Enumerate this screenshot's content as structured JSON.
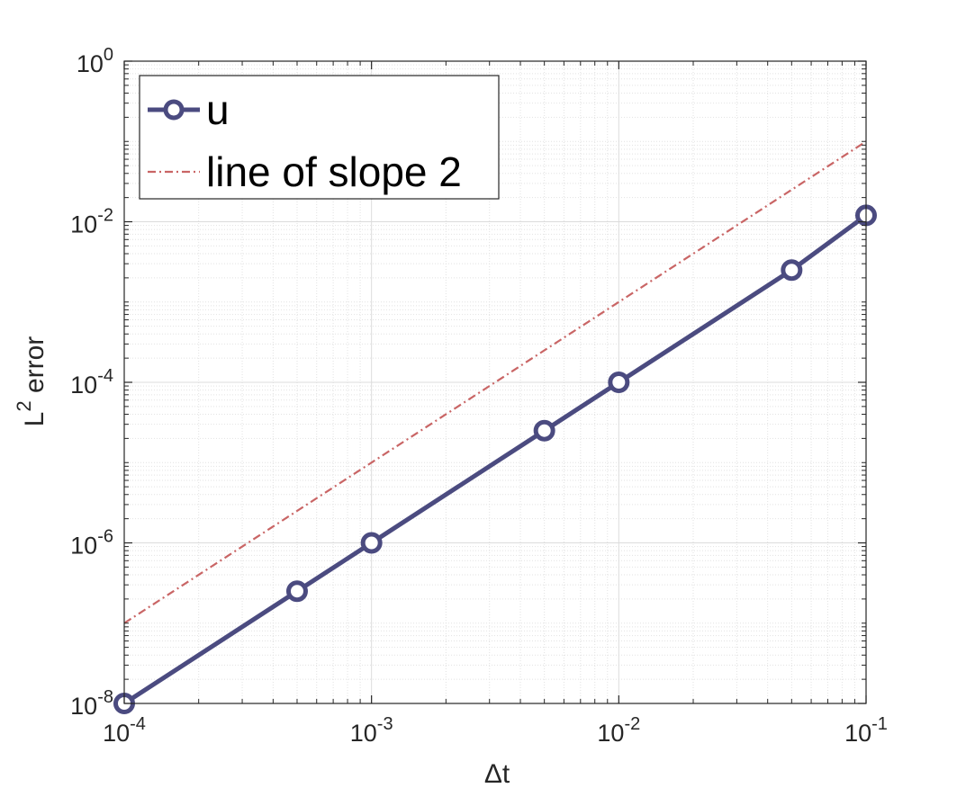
{
  "chart_data": {
    "type": "line",
    "xscale": "log",
    "yscale": "log",
    "xlim": [
      0.0001,
      0.1
    ],
    "ylim": [
      1e-08,
      1
    ],
    "grid": true,
    "minor_grid": true,
    "xlabel": "Δt",
    "ylabel": {
      "base": "L",
      "superscript": "2",
      "rest": " error"
    },
    "x_ticks": [
      {
        "value": 0.0001,
        "base": "10",
        "exp": "-4"
      },
      {
        "value": 0.001,
        "base": "10",
        "exp": "-3"
      },
      {
        "value": 0.01,
        "base": "10",
        "exp": "-2"
      },
      {
        "value": 0.1,
        "base": "10",
        "exp": "-1"
      }
    ],
    "y_ticks": [
      {
        "value": 1e-08,
        "base": "10",
        "exp": "-8"
      },
      {
        "value": 1e-06,
        "base": "10",
        "exp": "-6"
      },
      {
        "value": 0.0001,
        "base": "10",
        "exp": "-4"
      },
      {
        "value": 0.01,
        "base": "10",
        "exp": "-2"
      },
      {
        "value": 1,
        "base": "10",
        "exp": "0"
      }
    ],
    "legend_position": "top-left",
    "series": [
      {
        "name": "u",
        "style": "solid-circle-markers",
        "color": "#4b4b80",
        "x": [
          0.0001,
          0.0005,
          0.001,
          0.005,
          0.01,
          0.05,
          0.1
        ],
        "y": [
          1e-08,
          2.5e-07,
          1e-06,
          2.5e-05,
          0.0001,
          0.0025,
          0.012
        ]
      },
      {
        "name": "line of slope 2",
        "style": "dash-dot",
        "color": "#c96565",
        "x": [
          0.0001,
          0.1
        ],
        "y": [
          1e-07,
          0.1
        ]
      }
    ]
  }
}
